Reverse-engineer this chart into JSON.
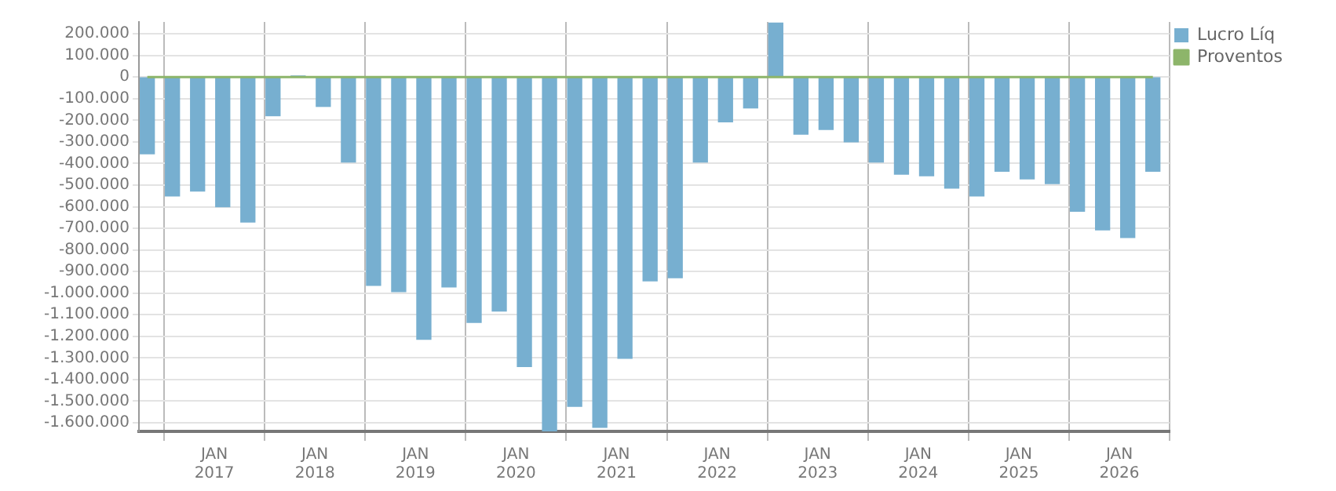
{
  "chart_data": {
    "type": "bar",
    "x": [
      "2016-05",
      "2016-08",
      "2016-11",
      "2017-02",
      "2017-05",
      "2017-08",
      "2017-11",
      "2018-02",
      "2018-05",
      "2018-08",
      "2018-11",
      "2019-02",
      "2019-05",
      "2019-08",
      "2019-11",
      "2020-02",
      "2020-05",
      "2020-08",
      "2020-11",
      "2021-02",
      "2021-05",
      "2021-08",
      "2021-11",
      "2022-02",
      "2022-05",
      "2022-08",
      "2022-11",
      "2023-02",
      "2023-05",
      "2023-08",
      "2023-11",
      "2024-02",
      "2024-05",
      "2024-08",
      "2024-11",
      "2025-02",
      "2025-05",
      "2025-08",
      "2025-11",
      "2026-02",
      "2026-05"
    ],
    "series": [
      {
        "name": "Lucro Líq",
        "color": "#77afd0",
        "values": [
          -355000,
          -550000,
          -528000,
          -600000,
          -671000,
          -179000,
          5000,
          -136000,
          -393000,
          -964000,
          -993000,
          -1214000,
          -971000,
          -1136000,
          -1083000,
          -1340000,
          -1640000,
          -1524000,
          -1621000,
          -1302000,
          -943000,
          -929000,
          -393000,
          -207000,
          -143000,
          250000,
          -264000,
          -243000,
          -300000,
          -393000,
          -450000,
          -457000,
          -514000,
          -550000,
          -436000,
          -471000,
          -493000,
          -621000,
          -707000,
          -743000,
          -436000
        ]
      },
      {
        "name": "Proventos",
        "type": "line",
        "color": "#8db56a",
        "values": [
          0,
          0,
          0,
          0,
          0,
          0,
          0,
          0,
          0,
          0,
          0,
          0,
          0,
          0,
          0,
          0,
          0,
          0,
          0,
          0,
          0,
          0,
          0,
          0,
          0,
          0,
          0,
          0,
          0,
          0,
          0,
          0,
          0,
          0,
          0,
          0,
          0,
          0,
          0,
          0,
          0
        ]
      }
    ],
    "xlim": [
      "2016-04",
      "2026-07"
    ],
    "xticks": [
      {
        "value": "2017-01",
        "label": "JAN 2017"
      },
      {
        "value": "2018-01",
        "label": "JAN 2018"
      },
      {
        "value": "2019-01",
        "label": "JAN 2019"
      },
      {
        "value": "2020-01",
        "label": "JAN 2020"
      },
      {
        "value": "2021-01",
        "label": "JAN 2021"
      },
      {
        "value": "2022-01",
        "label": "JAN 2022"
      },
      {
        "value": "2023-01",
        "label": "JAN 2023"
      },
      {
        "value": "2024-01",
        "label": "JAN 2024"
      },
      {
        "value": "2025-01",
        "label": "JAN 2025"
      },
      {
        "value": "2026-01",
        "label": "JAN 2026"
      }
    ],
    "ylim": [
      -1640000,
      255000
    ],
    "yticks": [
      {
        "value": 200000,
        "label": "200.000"
      },
      {
        "value": 100000,
        "label": "100.000"
      },
      0,
      {
        "value": -100000,
        "label": "-100.000"
      },
      {
        "value": -200000,
        "label": "-200.000"
      },
      {
        "value": -300000,
        "label": "-300.000"
      },
      {
        "value": -400000,
        "label": "-400.000"
      },
      {
        "value": -500000,
        "label": "-500.000"
      },
      {
        "value": -600000,
        "label": "-600.000"
      },
      {
        "value": -700000,
        "label": "-700.000"
      },
      {
        "value": -800000,
        "label": "-800.000"
      },
      {
        "value": -900000,
        "label": "-900.000"
      },
      {
        "value": -1000000,
        "label": "-1.000.000"
      },
      {
        "value": -1100000,
        "label": "-1.100.000"
      },
      {
        "value": -1200000,
        "label": "-1.200.000"
      },
      {
        "value": -1300000,
        "label": "-1.300.000"
      },
      {
        "value": -1400000,
        "label": "-1.400.000"
      },
      {
        "value": -1500000,
        "label": "-1.500.000"
      },
      {
        "value": -1600000,
        "label": "-1.600.000"
      }
    ],
    "grid": true,
    "legend": "right",
    "marker": "none"
  }
}
